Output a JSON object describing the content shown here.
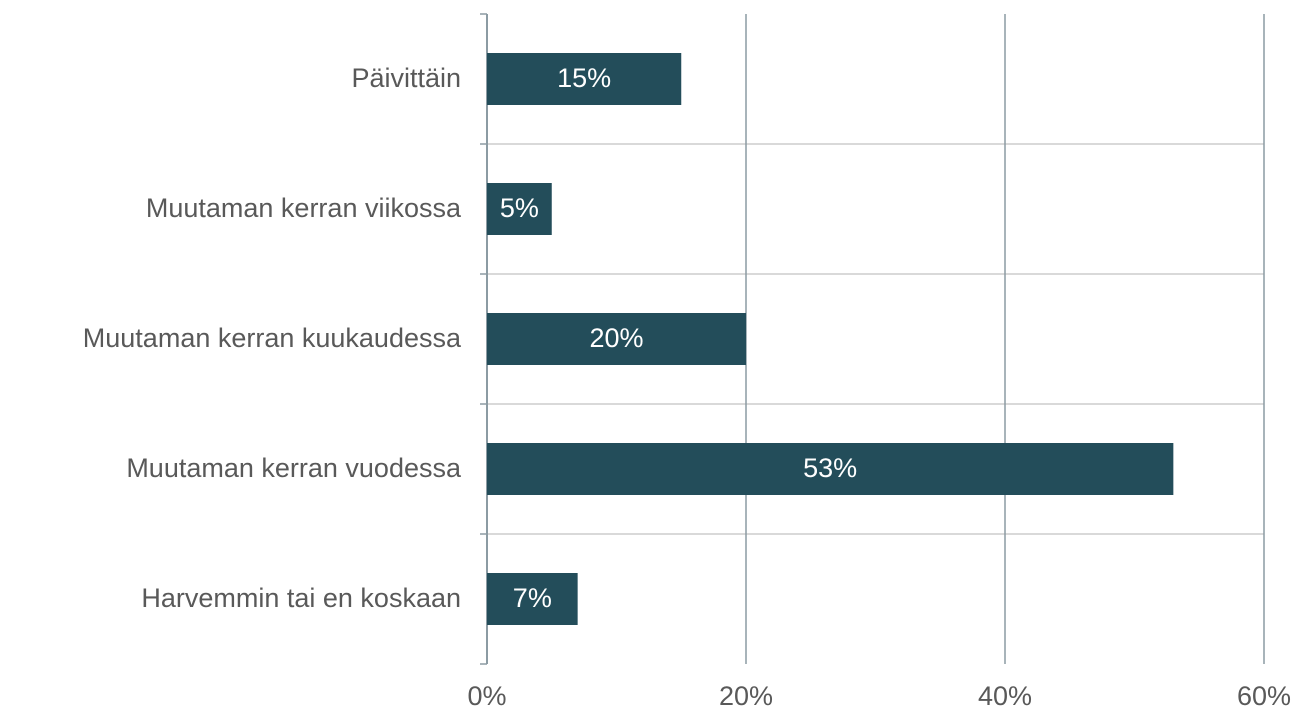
{
  "chart_data": {
    "type": "bar",
    "orientation": "horizontal",
    "categories": [
      "Päivittäin",
      "Muutaman kerran viikossa",
      "Muutaman kerran kuukaudessa",
      "Muutaman kerran vuodessa",
      "Harvemmin tai en koskaan"
    ],
    "values": [
      15,
      5,
      20,
      53,
      7
    ],
    "value_labels": [
      "15%",
      "5%",
      "20%",
      "53%",
      "7%"
    ],
    "color": "#234d5a",
    "xlim": [
      0,
      60
    ],
    "xticks": [
      {
        "value": 0,
        "label": "0%"
      },
      {
        "value": 20,
        "label": "20%"
      },
      {
        "value": 40,
        "label": "40%"
      },
      {
        "value": 60,
        "label": "60%"
      }
    ],
    "grid": true
  }
}
